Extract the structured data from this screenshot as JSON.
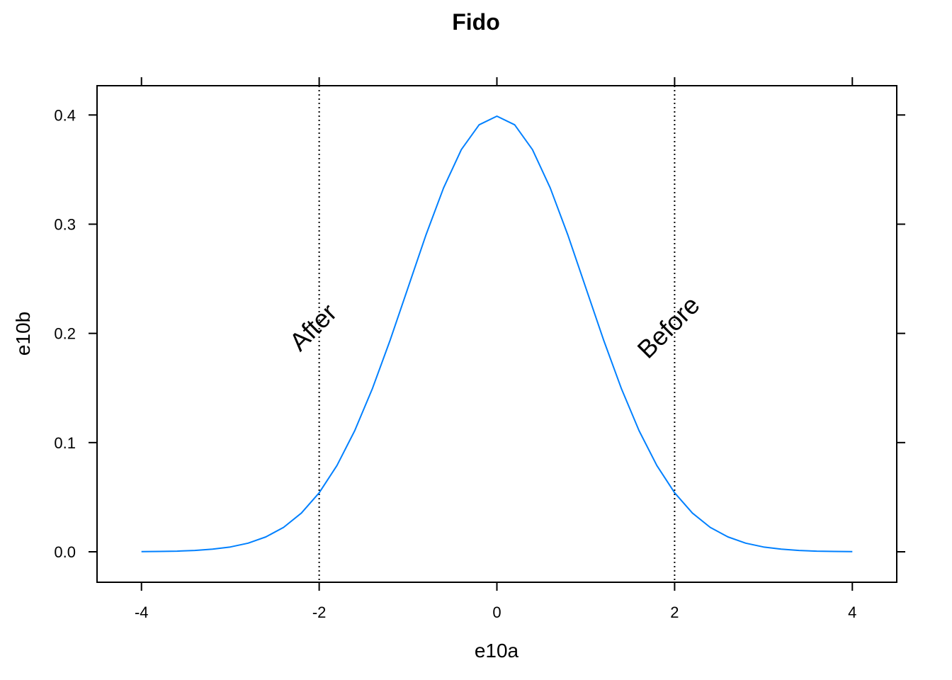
{
  "chart_data": {
    "type": "line",
    "title": "Fido",
    "xlabel": "e10a",
    "ylabel": "e10b",
    "xlim": [
      -4.5,
      4.5
    ],
    "ylim": [
      -0.0279,
      0.4268
    ],
    "x_ticks": [
      -4,
      -2,
      0,
      2,
      4
    ],
    "x_tick_labels": [
      "-4",
      "-2",
      "0",
      "2",
      "4"
    ],
    "y_ticks": [
      0.0,
      0.1,
      0.2,
      0.3,
      0.4
    ],
    "y_tick_labels": [
      "0.0",
      "0.1",
      "0.2",
      "0.3",
      "0.4"
    ],
    "grid": false,
    "legend": "none",
    "series": [
      {
        "color": "#0080ff",
        "x": [
          -4.0,
          -3.8,
          -3.6,
          -3.4,
          -3.2,
          -3.0,
          -2.8,
          -2.6,
          -2.4,
          -2.2,
          -2.0,
          -1.8,
          -1.6,
          -1.4,
          -1.2,
          -1.0,
          -0.8,
          -0.6,
          -0.4,
          -0.2,
          0.0,
          0.2,
          0.4,
          0.6,
          0.8,
          1.0,
          1.2,
          1.4,
          1.6,
          1.8,
          2.0,
          2.2,
          2.4,
          2.6,
          2.8,
          3.0,
          3.2,
          3.4,
          3.6,
          3.8,
          4.0
        ],
        "y": [
          0.0001,
          0.0003,
          0.0006,
          0.0012,
          0.0024,
          0.0044,
          0.0079,
          0.0136,
          0.0224,
          0.0355,
          0.054,
          0.079,
          0.1109,
          0.1497,
          0.1942,
          0.242,
          0.2897,
          0.3332,
          0.3683,
          0.391,
          0.3989,
          0.391,
          0.3683,
          0.3332,
          0.2897,
          0.242,
          0.1942,
          0.1497,
          0.1109,
          0.079,
          0.054,
          0.0355,
          0.0224,
          0.0136,
          0.0079,
          0.0044,
          0.0024,
          0.0012,
          0.0006,
          0.0003,
          0.0001
        ]
      }
    ],
    "reference_lines": [
      {
        "x": -2,
        "style": "dotted",
        "color": "#000000"
      },
      {
        "x": 2,
        "style": "dotted",
        "color": "#000000"
      }
    ],
    "annotations": [
      {
        "text": "After",
        "x": -2,
        "y": 0.2,
        "rotation_deg": 45
      },
      {
        "text": "Before",
        "x": 2,
        "y": 0.2,
        "rotation_deg": 45
      }
    ]
  }
}
